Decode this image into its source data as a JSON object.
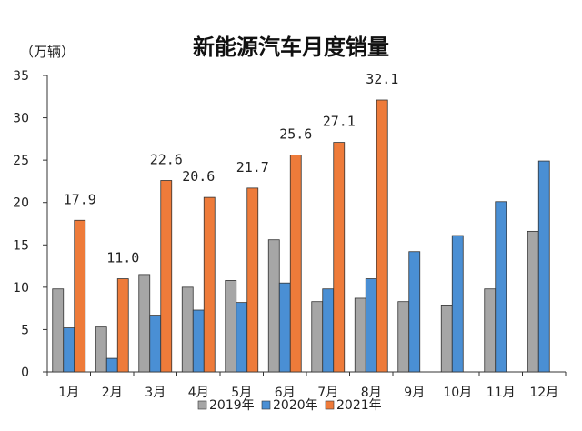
{
  "chart_data": {
    "type": "bar",
    "title": "新能源汽车月度销量",
    "unit_label": "（万辆）",
    "ylim": [
      0,
      35
    ],
    "yticks": [
      0,
      5,
      10,
      15,
      20,
      25,
      30,
      35
    ],
    "categories": [
      "1月",
      "2月",
      "3月",
      "4月",
      "5月",
      "6月",
      "7月",
      "8月",
      "9月",
      "10月",
      "11月",
      "12月"
    ],
    "series": [
      {
        "name": "2019年",
        "color": "#a6a6a6",
        "values": [
          9.8,
          5.3,
          11.5,
          10.0,
          10.8,
          15.6,
          8.3,
          8.7,
          8.3,
          7.9,
          9.8,
          16.6
        ]
      },
      {
        "name": "2020年",
        "color": "#4a8fd4",
        "values": [
          5.2,
          1.6,
          6.7,
          7.3,
          8.2,
          10.5,
          9.8,
          11.0,
          14.2,
          16.1,
          20.1,
          24.9
        ]
      },
      {
        "name": "2021年",
        "color": "#ee7b3a",
        "values": [
          17.9,
          11.0,
          22.6,
          20.6,
          21.7,
          25.6,
          27.1,
          32.1,
          null,
          null,
          null,
          null
        ]
      }
    ],
    "data_labels": {
      "series": "2021年",
      "texts": [
        "17.9",
        "11.0",
        "22.6",
        "20.6",
        "21.7",
        "25.6",
        "27.1",
        "32.1"
      ]
    },
    "legend_position": "bottom",
    "grid": false
  }
}
